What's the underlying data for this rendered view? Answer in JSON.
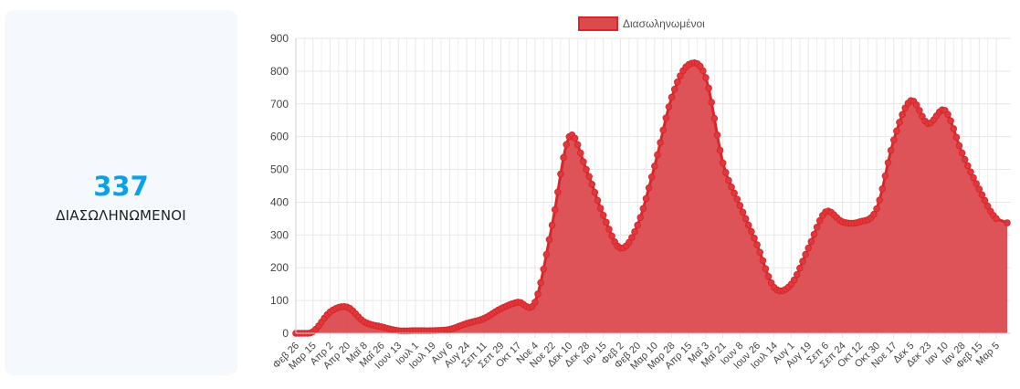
{
  "stat": {
    "value": "337",
    "label": "ΔΙΑΣΩΛΗΝΩΜΕΝΟΙ"
  },
  "colors": {
    "line": "#d9262b",
    "fill": "#dc4a4e",
    "point": "#e0393d",
    "grid": "#e6e6e6",
    "accent": "#0aa1e6"
  },
  "chart_data": {
    "type": "area",
    "legend": [
      "Διασωληνωμένοι"
    ],
    "legend_position": "top",
    "grid": true,
    "ylim": [
      0,
      900
    ],
    "y_ticks": [
      0,
      100,
      200,
      300,
      400,
      500,
      600,
      700,
      800,
      900
    ],
    "x_tick_labels": [
      "Φεβ 26",
      "Μαρ 15",
      "Απρ 2",
      "Απρ 20",
      "Μαΐ 8",
      "Μαΐ 26",
      "Ιουν 13",
      "Ιουλ 1",
      "Ιουλ 19",
      "Αυγ 6",
      "Αυγ 24",
      "Σεπ 11",
      "Σεπ 29",
      "Οκτ 17",
      "Νοε 4",
      "Νοε 22",
      "Δεκ 10",
      "Δεκ 28",
      "Ιαν 15",
      "Φεβ 2",
      "Φεβ 20",
      "Μαρ 10",
      "Μαρ 28",
      "Απρ 15",
      "Μαΐ 3",
      "Μαΐ 21",
      "Ιουν 8",
      "Ιουν 26",
      "Ιουλ 14",
      "Αυγ 1",
      "Αυγ 19",
      "Σεπ 6",
      "Σεπ 24",
      "Οκτ 12",
      "Οκτ 30",
      "Νοε 17",
      "Δεκ 5",
      "Δεκ 23",
      "Ιαν 10",
      "Ιαν 28",
      "Φεβ 15",
      "Μαρ 5"
    ],
    "series": [
      {
        "name": "Διασωληνωμένοι",
        "values_at_ticks": [
          0,
          5,
          65,
          80,
          35,
          20,
          8,
          8,
          8,
          12,
          30,
          45,
          75,
          95,
          95,
          330,
          600,
          500,
          360,
          260,
          330,
          510,
          720,
          820,
          780,
          520,
          390,
          270,
          140,
          150,
          260,
          370,
          340,
          340,
          380,
          590,
          710,
          640,
          680,
          550,
          440,
          350
        ],
        "last_value": 337
      }
    ]
  }
}
